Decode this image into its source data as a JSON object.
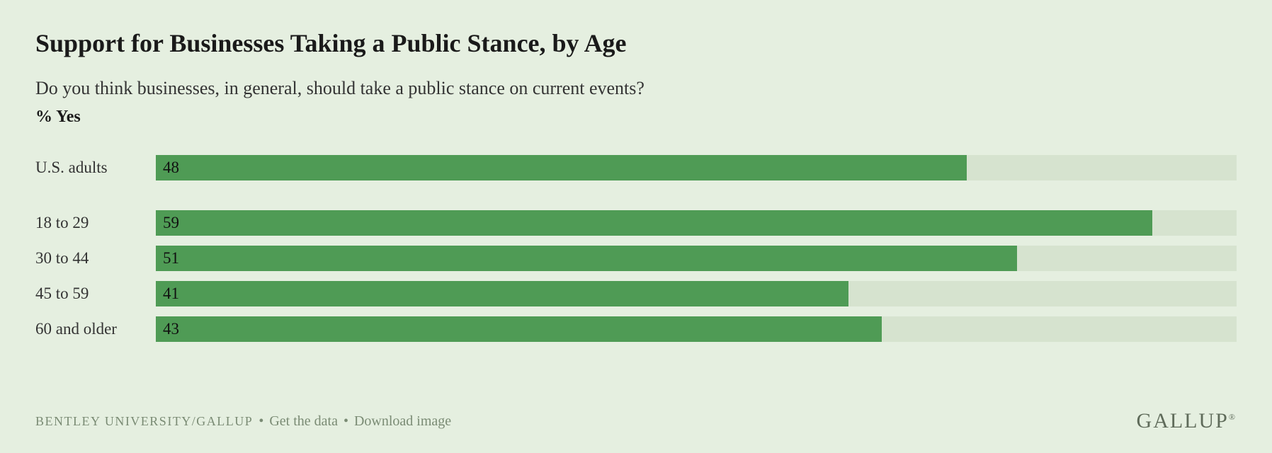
{
  "chart": {
    "type": "bar",
    "title": "Support for Businesses Taking a Public Stance, by Age",
    "subtitle": "Do you think businesses, in general, should take a public stance on current events?",
    "yes_label": "% Yes",
    "bar_color": "#4f9b55",
    "track_color": "#d6e3cf",
    "background_color": "#e5efe0",
    "text_color": "#1a1a1a",
    "max_value": 64,
    "title_fontsize": 36,
    "subtitle_fontsize": 26,
    "label_fontsize": 23,
    "value_fontsize": 23,
    "groups": [
      {
        "rows": [
          {
            "label": "U.S. adults",
            "value": 48
          }
        ]
      },
      {
        "rows": [
          {
            "label": "18 to 29",
            "value": 59
          },
          {
            "label": "30 to 44",
            "value": 51
          },
          {
            "label": "45 to 59",
            "value": 41
          },
          {
            "label": "60 and older",
            "value": 43
          }
        ]
      }
    ]
  },
  "footer": {
    "source": "BENTLEY UNIVERSITY/GALLUP",
    "get_data": "Get the data",
    "download_image": "Download image",
    "logo": "GALLUP",
    "footer_color": "#7a8b74"
  }
}
